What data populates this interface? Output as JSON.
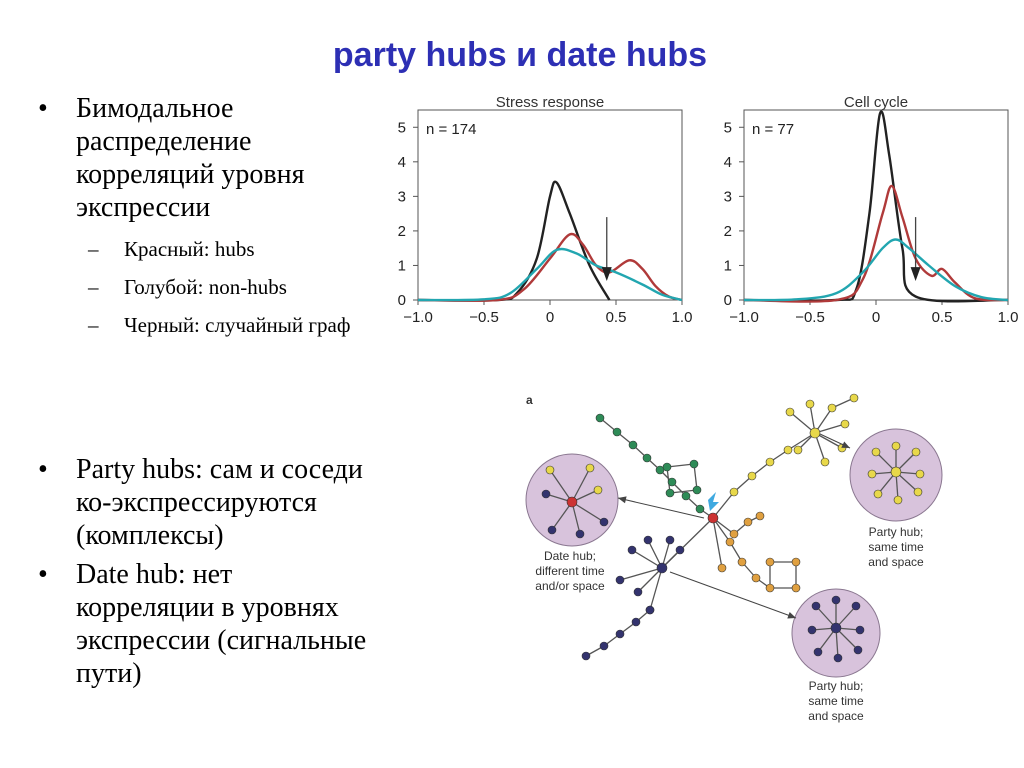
{
  "slide": {
    "title": "party hubs и date hubs",
    "bullets": [
      {
        "text_lines": [
          "Бимодальное",
          "распределение",
          "корреляций уровня",
          "экспрессии"
        ],
        "sub": [
          "Красный: hubs",
          "Голубой: non-hubs",
          "Черный: случайный граф"
        ]
      },
      {
        "text_lines": [
          "Party hubs: сам и соседи",
          "ко-экспрессируются",
          "(комплексы)"
        ]
      },
      {
        "text_lines": [
          "Date hub: нет",
          "корреляции в уровнях",
          "экспрессии (сигнальные",
          "пути)"
        ]
      }
    ]
  },
  "colors": {
    "title": "#2d2fb4",
    "hubs_red": "#b03a3a",
    "nonhubs_cyan": "#22a6b0",
    "random_black": "#222222",
    "circle_fill": "#d8c3dc",
    "green_node": "#2e8b57",
    "yellow_node": "#e8d84a",
    "orange_node": "#e0a040",
    "navy_node": "#33336e"
  },
  "chart_data": [
    {
      "type": "line",
      "title": "Stress response",
      "annotation": "n = 174",
      "xlabel": "",
      "ylabel": "",
      "xlim": [
        -1.0,
        1.0
      ],
      "ylim": [
        0,
        5.5
      ],
      "x_ticks": [
        "−1.0",
        "−0.5",
        "0",
        "0.5",
        "1.0"
      ],
      "y_ticks": [
        "0",
        "1",
        "2",
        "3",
        "4",
        "5"
      ],
      "arrow_x": 0.43,
      "series": [
        {
          "color_key": "random_black",
          "x": [
            -1.0,
            -0.4,
            -0.25,
            -0.1,
            0.0,
            0.05,
            0.15,
            0.3,
            0.45
          ],
          "values": [
            0,
            0,
            0.2,
            1.2,
            3.0,
            3.4,
            2.5,
            1.0,
            0.0
          ]
        },
        {
          "color_key": "hubs_red",
          "x": [
            -1.0,
            -0.4,
            -0.2,
            0.0,
            0.15,
            0.25,
            0.35,
            0.45,
            0.6,
            0.7,
            0.8,
            0.9,
            1.0
          ],
          "values": [
            0,
            0,
            0.3,
            1.2,
            1.9,
            1.6,
            1.0,
            0.8,
            1.15,
            0.9,
            0.4,
            0.1,
            0
          ]
        },
        {
          "color_key": "nonhubs_cyan",
          "x": [
            -1.0,
            -0.5,
            -0.3,
            -0.1,
            0.05,
            0.2,
            0.35,
            0.5,
            0.7,
            0.85,
            1.0
          ],
          "values": [
            0,
            0.02,
            0.2,
            0.9,
            1.45,
            1.35,
            1.0,
            0.8,
            0.45,
            0.15,
            0
          ]
        }
      ]
    },
    {
      "type": "line",
      "title": "Cell cycle",
      "annotation": "n = 77",
      "xlabel": "",
      "ylabel": "",
      "xlim": [
        -1.0,
        1.0
      ],
      "ylim": [
        0,
        5.5
      ],
      "x_ticks": [
        "−1.0",
        "−0.5",
        "0",
        "0.5",
        "1.0"
      ],
      "y_ticks": [
        "0",
        "1",
        "2",
        "3",
        "4",
        "5"
      ],
      "arrow_x": 0.3,
      "series": [
        {
          "color_key": "random_black",
          "x": [
            -1.0,
            -0.3,
            -0.15,
            -0.05,
            0.03,
            0.1,
            0.2,
            0.3,
            1.0
          ],
          "values": [
            0,
            0,
            0.3,
            2.5,
            5.4,
            4.2,
            1.5,
            0.1,
            0
          ]
        },
        {
          "color_key": "hubs_red",
          "x": [
            -1.0,
            -0.3,
            -0.1,
            0.05,
            0.12,
            0.2,
            0.3,
            0.42,
            0.5,
            0.6,
            0.75,
            1.0
          ],
          "values": [
            0,
            0,
            0.6,
            2.5,
            3.3,
            2.4,
            1.2,
            0.7,
            0.9,
            0.5,
            0.05,
            0
          ]
        },
        {
          "color_key": "nonhubs_cyan",
          "x": [
            -1.0,
            -0.6,
            -0.3,
            -0.1,
            0.05,
            0.15,
            0.25,
            0.4,
            0.6,
            0.8,
            1.0
          ],
          "values": [
            0,
            0.02,
            0.2,
            0.8,
            1.5,
            1.75,
            1.5,
            1.0,
            0.4,
            0.08,
            0
          ]
        }
      ]
    }
  ],
  "diagram": {
    "panel_label": "a",
    "labels": {
      "date_hub": [
        "Date hub;",
        "different time",
        "and/or space"
      ],
      "party_hub_top": [
        "Party hub;",
        "same time",
        "and space"
      ],
      "party_hub_bottom": [
        "Party hub;",
        "same time",
        "and space"
      ]
    }
  }
}
